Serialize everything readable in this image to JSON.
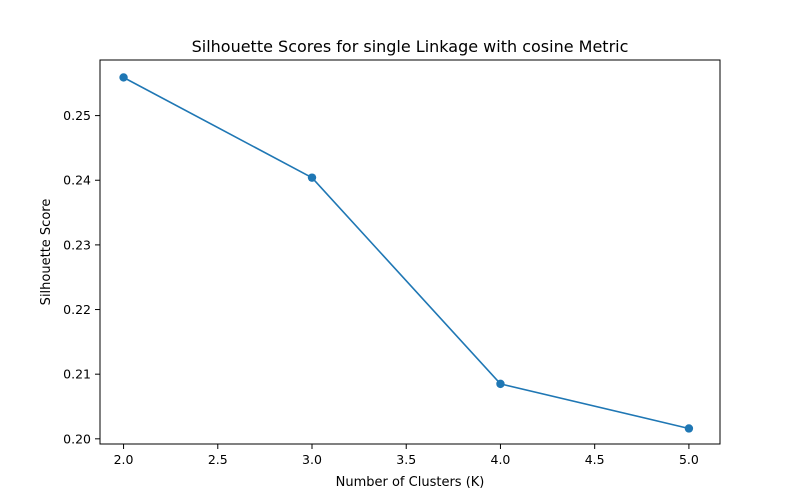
{
  "chart_data": {
    "type": "line",
    "title": "Silhouette Scores for single Linkage with cosine Metric",
    "xlabel": "Number of Clusters (K)",
    "ylabel": "Silhouette Score",
    "xlim": [
      1.875,
      5.165
    ],
    "ylim": [
      0.1992,
      0.2586
    ],
    "xticks": [
      2.0,
      2.5,
      3.0,
      3.5,
      4.0,
      4.5,
      5.0
    ],
    "xtick_labels": [
      "2.0",
      "2.5",
      "3.0",
      "3.5",
      "4.0",
      "4.5",
      "5.0"
    ],
    "yticks": [
      0.2,
      0.21,
      0.22,
      0.23,
      0.24,
      0.25
    ],
    "ytick_labels": [
      "0.20",
      "0.21",
      "0.22",
      "0.23",
      "0.24",
      "0.25"
    ],
    "grid": false,
    "series": [
      {
        "x": [
          2,
          3,
          4,
          5
        ],
        "y": [
          0.2559,
          0.2404,
          0.2085,
          0.2016
        ],
        "color": "#1f77b4",
        "marker": "circle"
      }
    ]
  }
}
